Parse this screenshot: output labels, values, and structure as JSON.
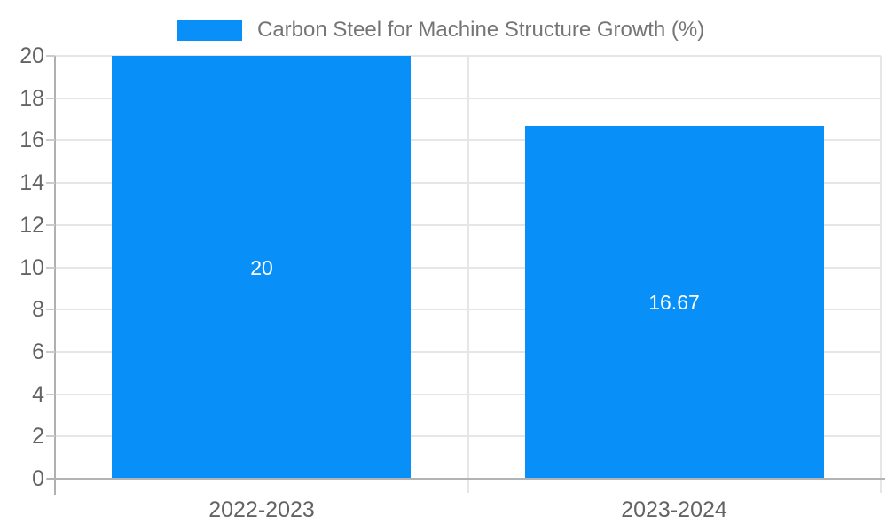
{
  "chart_data": {
    "type": "bar",
    "title": "",
    "xlabel": "",
    "ylabel": "",
    "legend": {
      "position": "top",
      "label": "Carbon Steel for Machine Structure Growth (%)"
    },
    "categories": [
      "2022-2023",
      "2023-2024"
    ],
    "series": [
      {
        "name": "Carbon Steel for Machine Structure Growth (%)",
        "values": [
          20,
          16.67
        ],
        "value_labels": [
          "20",
          "16.67"
        ],
        "color": "#0890F8"
      }
    ],
    "ylim": [
      0,
      20
    ],
    "ytick_step": 2,
    "ytick_labels": [
      "0",
      "2",
      "4",
      "6",
      "8",
      "10",
      "12",
      "14",
      "16",
      "18",
      "20"
    ],
    "grid": true
  },
  "colors": {
    "bar": "#0890F8",
    "gridline": "#e6e6e6",
    "axis_line": "#b0b0b0",
    "baseline": "#b3b3b3",
    "tick": "#cccccc",
    "axis_text": "#636363",
    "legend_text": "#757575",
    "value_label_text": "#ffffff",
    "background": "#ffffff"
  }
}
